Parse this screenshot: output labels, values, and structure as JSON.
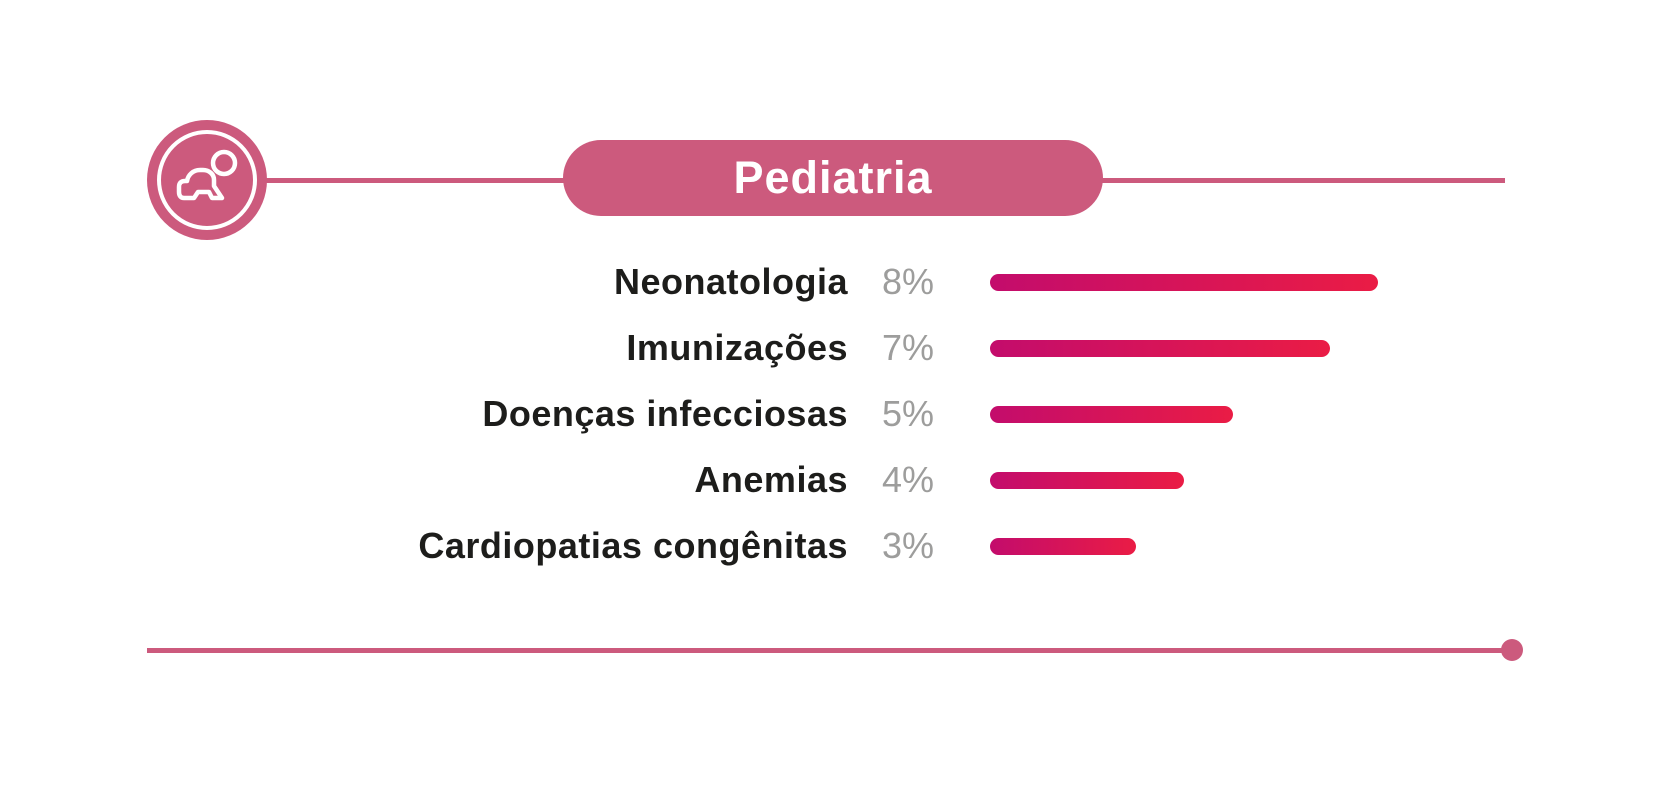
{
  "header": {
    "title": "Pediatria"
  },
  "icons": {
    "topic": "baby-crawling-icon"
  },
  "colors": {
    "accent_pink": "#cc5a7d",
    "bar_gradient_start": "#c30c6c",
    "bar_gradient_end": "#ea1c45",
    "label_text": "#1d1d1b",
    "percent_text": "#9d9d9c",
    "background": "#ffffff"
  },
  "chart_data": {
    "type": "bar",
    "orientation": "horizontal",
    "title": "Pediatria",
    "categories": [
      "Neonatologia",
      "Imunizações",
      "Doenças infecciosas",
      "Anemias",
      "Cardiopatias congênitas"
    ],
    "values": [
      8,
      7,
      5,
      4,
      3
    ],
    "value_labels": [
      "8%",
      "7%",
      "5%",
      "4%",
      "3%"
    ],
    "unit": "%",
    "xlim": [
      0,
      8
    ],
    "legend": false,
    "gridlines": false,
    "bar_gradient": [
      "#c30c6c",
      "#ea1c45"
    ]
  }
}
